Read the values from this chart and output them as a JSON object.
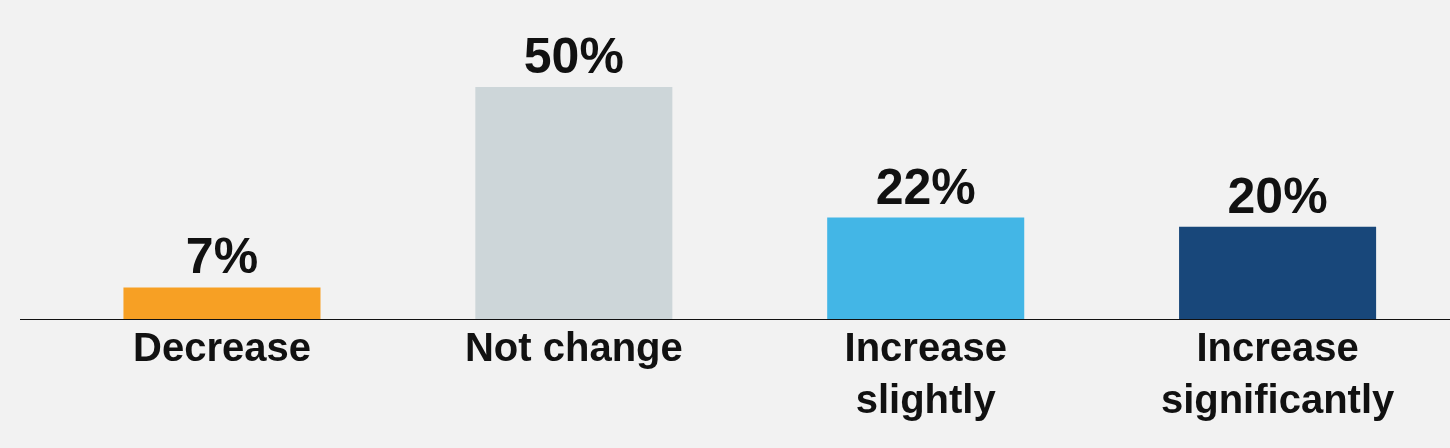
{
  "chart_data": {
    "type": "bar",
    "categories": [
      "Decrease",
      "Not change",
      "Increase slightly",
      "Increase significantly"
    ],
    "values": [
      7,
      50,
      22,
      20
    ],
    "value_labels": [
      "7%",
      "50%",
      "22%",
      "20%"
    ],
    "colors": [
      "#f7a024",
      "#cdd6d9",
      "#43b6e6",
      "#18477a"
    ],
    "ylim": [
      0,
      68.7
    ],
    "grid": false,
    "legend": false
  }
}
